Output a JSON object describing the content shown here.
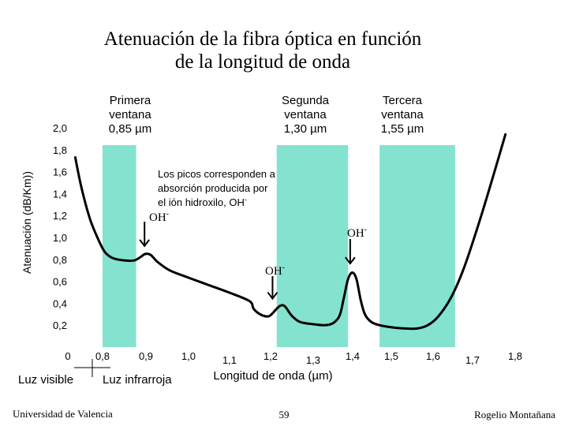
{
  "title_line1": "Atenuación de la fibra óptica en función",
  "title_line2": "de la longitud de onda",
  "colors": {
    "window": "#84e3cf",
    "curve": "#000000",
    "text": "#000000"
  },
  "windows": [
    {
      "line1": "Primera",
      "line2": "ventana",
      "line3": "0,85 µm",
      "x0": 0.8,
      "x1": 0.88
    },
    {
      "line1": "Segunda",
      "line2": "ventana",
      "line3": "1,30 µm",
      "x0": 1.215,
      "x1": 1.385
    },
    {
      "line1": "Tercera",
      "line2": "ventana",
      "line3": "1,55 µm",
      "x0": 1.46,
      "x1": 1.64
    }
  ],
  "annotation": {
    "line1": "Los picos corresponden a",
    "line2": "absorción producida por",
    "line3": "el ión hidroxilo, OH",
    "sup": "-"
  },
  "oh_labels": [
    {
      "text": "OH",
      "sup": "-"
    },
    {
      "text": "OH",
      "sup": "-"
    },
    {
      "text": "OH",
      "sup": "-"
    }
  ],
  "luz_visible": "Luz visible",
  "luz_infrarroja": "Luz infrarroja",
  "footer": {
    "left": "Universidad de Valencia",
    "center": "59",
    "right": "Rogelio Montañana"
  },
  "chart_data": {
    "type": "line",
    "title": "Atenuación de la fibra óptica en función de la longitud de onda",
    "xlabel": "Longitud de onda (µm)",
    "ylabel": "Atenuación (dB/Km))",
    "xticks": [
      "0",
      "0,8",
      "0,9",
      "1,0",
      "1,1",
      "1,2",
      "1,3",
      "1,4",
      "1,5",
      "1,6",
      "1,7",
      "1,8"
    ],
    "yticks": [
      "0,2",
      "0,4",
      "0,6",
      "0,8",
      "1,0",
      "1,2",
      "1,4",
      "1,6",
      "1,8",
      "2,0"
    ],
    "xlim": [
      0.7,
      1.8
    ],
    "ylim": [
      0.0,
      2.0
    ],
    "grid": false,
    "legend": "none",
    "series": [
      {
        "x": [
          0.735,
          0.75,
          0.77,
          0.79,
          0.805,
          0.82,
          0.835,
          0.855,
          0.875,
          0.89,
          0.902,
          0.915,
          0.93,
          0.96,
          1.0,
          1.05,
          1.1,
          1.15,
          1.16,
          1.175,
          1.19,
          1.2,
          1.215,
          1.225,
          1.235,
          1.25,
          1.27,
          1.3,
          1.33,
          1.35,
          1.365,
          1.375,
          1.385,
          1.395,
          1.405,
          1.415,
          1.425,
          1.44,
          1.46,
          1.49,
          1.52,
          1.55,
          1.575,
          1.6,
          1.63,
          1.66,
          1.69,
          1.72,
          1.76
        ],
        "y": [
          1.73,
          1.45,
          1.17,
          0.98,
          0.87,
          0.82,
          0.8,
          0.79,
          0.79,
          0.82,
          0.85,
          0.84,
          0.78,
          0.7,
          0.64,
          0.57,
          0.5,
          0.42,
          0.35,
          0.3,
          0.28,
          0.29,
          0.35,
          0.38,
          0.37,
          0.29,
          0.23,
          0.21,
          0.2,
          0.22,
          0.29,
          0.45,
          0.62,
          0.68,
          0.62,
          0.43,
          0.3,
          0.23,
          0.2,
          0.18,
          0.17,
          0.17,
          0.2,
          0.28,
          0.45,
          0.71,
          1.05,
          1.42,
          1.94
        ]
      }
    ],
    "arrows": [
      {
        "x": 0.9,
        "y": 0.85
      },
      {
        "x": 1.205,
        "y": 0.37
      },
      {
        "x": 1.39,
        "y": 0.69
      }
    ]
  }
}
